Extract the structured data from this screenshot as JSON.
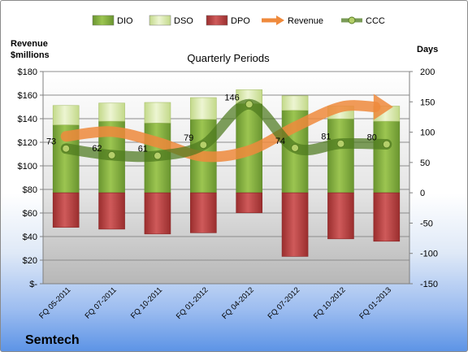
{
  "chart_data": {
    "type": "bar",
    "title": "Quarterly Periods",
    "company": "Semtech",
    "ylabel_left": "Revenue\n$millions",
    "ylabel_right": "Days",
    "categories": [
      "FQ 05-2011",
      "FQ 07-2011",
      "FQ 10-2011",
      "FQ 01-2012",
      "FQ 04-2012",
      "FQ 07-2012",
      "FQ 10-2012",
      "FQ 01-2013"
    ],
    "left_ticks": [
      "$-",
      "$20",
      "$40",
      "$60",
      "$80",
      "$100",
      "$120",
      "$140",
      "$160",
      "$180"
    ],
    "right_ticks": [
      "-150",
      "-100",
      "-50",
      "0",
      "50",
      "100",
      "150",
      "200"
    ],
    "ylim_right": [
      -150,
      200
    ],
    "ylim_left": [
      0,
      180
    ],
    "legend_position": "top",
    "series": [
      {
        "name": "DIO",
        "color": "#7fa83a",
        "values": [
          112,
          118,
          115,
          121,
          147,
          136,
          122,
          118
        ]
      },
      {
        "name": "DSO",
        "color": "#cfe2a0",
        "values": [
          32,
          30,
          34,
          36,
          23,
          24,
          21,
          25
        ]
      },
      {
        "name": "DPO",
        "color": "#b83c3c",
        "values": [
          -57,
          -60,
          -68,
          -66,
          -33,
          -105,
          -76,
          -80
        ]
      },
      {
        "name": "Revenue",
        "color": "#ef8a3c",
        "values": [
          125,
          129,
          120,
          108,
          113,
          133,
          150,
          150
        ]
      },
      {
        "name": "CCC",
        "color": "#4d7a1f",
        "values": [
          73,
          62,
          61,
          79,
          146,
          74,
          81,
          80
        ]
      }
    ],
    "ccc_labels": [
      "73",
      "62",
      "61",
      "79",
      "146",
      "74",
      "81",
      "80"
    ]
  }
}
